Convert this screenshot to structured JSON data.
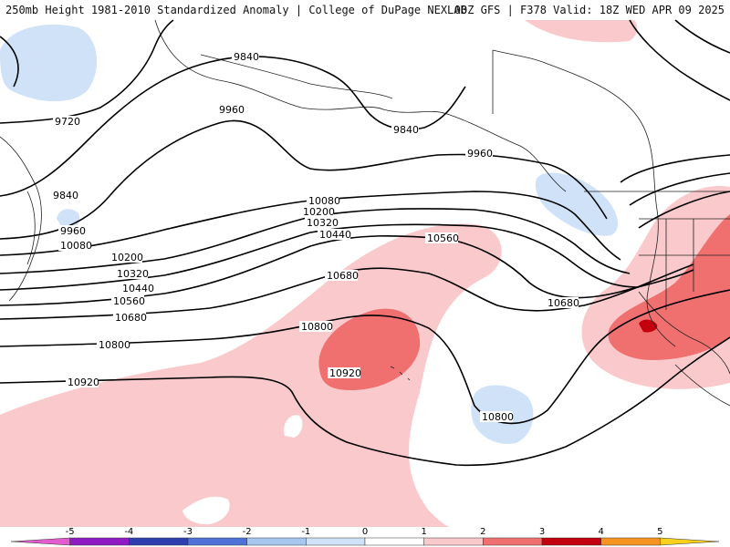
{
  "header": {
    "left": "250mb Height 1981-2010 Standardized Anomaly | College of DuPage NEXLAB",
    "right": "00Z GFS | F378 Valid: 18Z WED APR 09 2025"
  },
  "contour_labels": [
    "9840",
    "9720",
    "9960",
    "9840",
    "9840",
    "9960",
    "9960",
    "10080",
    "10200",
    "10320",
    "10440",
    "10560",
    "10680",
    "10800",
    "10920",
    "10080",
    "10200",
    "10320",
    "10440",
    "10560",
    "10680",
    "10800",
    "10920",
    "10800",
    "10680"
  ],
  "colorbar": {
    "ticks": [
      "-5",
      "-4",
      "-3",
      "-2",
      "-1",
      "0",
      "1",
      "2",
      "3",
      "4",
      "5"
    ],
    "colors": [
      "#e25ccf",
      "#8e1bc4",
      "#2d3fae",
      "#4f72d8",
      "#a8c7f0",
      "#cfe2f7",
      "#ffffff",
      "#f9c9cb",
      "#f07070",
      "#c2000e",
      "#f5941e",
      "#f7d11e"
    ]
  }
}
